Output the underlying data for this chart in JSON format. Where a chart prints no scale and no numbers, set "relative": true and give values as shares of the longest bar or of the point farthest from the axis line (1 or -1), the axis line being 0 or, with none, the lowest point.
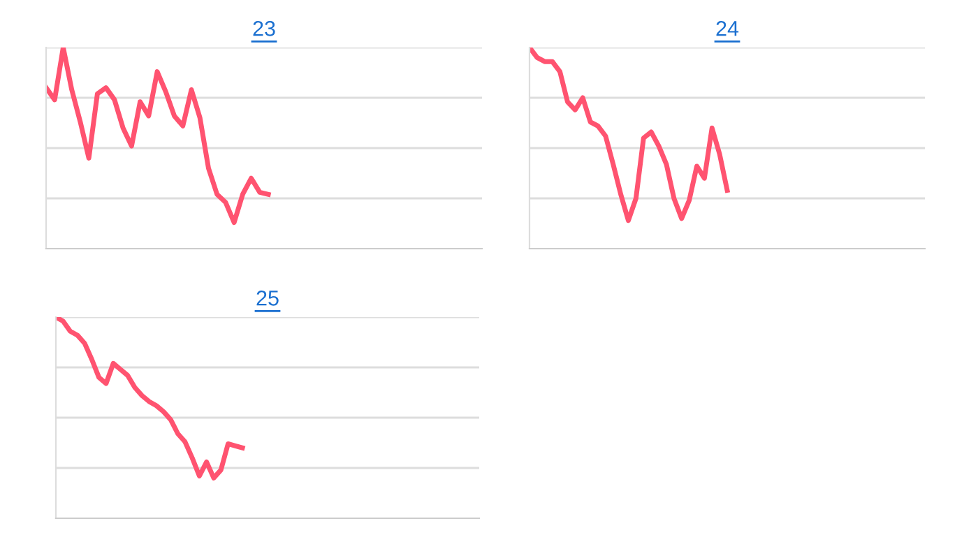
{
  "chart_data": [
    {
      "type": "line",
      "title": "23",
      "relative": true,
      "grid": "y",
      "legend": false,
      "marker": "none",
      "line_style": "solid",
      "categories": [
        null,
        null,
        null,
        null,
        null,
        null,
        null,
        null,
        null,
        null,
        null,
        null,
        null,
        null,
        null,
        null,
        null,
        null,
        null,
        null,
        null,
        null,
        null,
        null,
        null,
        null,
        null,
        null,
        null,
        null,
        null,
        null,
        null,
        null,
        null,
        null,
        null,
        null,
        null,
        null,
        null,
        null,
        null,
        null,
        null,
        null,
        null,
        null,
        null,
        null,
        null,
        null
      ],
      "series": [
        {
          "color": "#ff5370",
          "values": [
            0.8,
            0.74,
            1.0,
            0.79,
            0.63,
            0.45,
            0.77,
            0.8,
            0.74,
            0.6,
            0.51,
            0.73,
            0.66,
            0.88,
            0.78,
            0.66,
            0.61,
            0.79,
            0.65,
            0.4,
            0.27,
            0.23,
            0.13,
            0.27,
            0.35,
            0.28,
            0.27,
            null,
            null,
            null,
            null,
            null,
            null,
            null,
            null,
            null,
            null,
            null,
            null,
            null,
            null,
            null,
            null,
            null,
            null,
            null,
            null,
            null,
            null,
            null,
            null,
            null
          ]
        }
      ]
    },
    {
      "type": "line",
      "title": "24",
      "relative": true,
      "grid": "y",
      "legend": false,
      "marker": "none",
      "line_style": "solid",
      "categories": [
        null,
        null,
        null,
        null,
        null,
        null,
        null,
        null,
        null,
        null,
        null,
        null,
        null,
        null,
        null,
        null,
        null,
        null,
        null,
        null,
        null,
        null,
        null,
        null,
        null,
        null,
        null,
        null,
        null,
        null,
        null,
        null,
        null,
        null,
        null,
        null,
        null,
        null,
        null,
        null,
        null,
        null,
        null,
        null,
        null,
        null,
        null,
        null,
        null,
        null,
        null,
        null,
        null
      ],
      "series": [
        {
          "color": "#ff5370",
          "values": [
            1.0,
            0.95,
            0.93,
            0.93,
            0.88,
            0.73,
            0.69,
            0.75,
            0.63,
            0.61,
            0.56,
            0.42,
            0.27,
            0.14,
            0.25,
            0.55,
            0.58,
            0.51,
            0.42,
            0.25,
            0.15,
            0.24,
            0.41,
            0.35,
            0.6,
            0.47,
            0.29,
            null,
            null,
            null,
            null,
            null,
            null,
            null,
            null,
            null,
            null,
            null,
            null,
            null,
            null,
            null,
            null,
            null,
            null,
            null,
            null,
            null,
            null,
            null,
            null,
            null,
            null
          ]
        }
      ]
    },
    {
      "type": "line",
      "title": "25",
      "relative": true,
      "grid": "y",
      "legend": false,
      "marker": "none",
      "line_style": "solid",
      "categories": [
        null,
        null,
        null,
        null,
        null,
        null,
        null,
        null,
        null,
        null,
        null,
        null,
        null,
        null,
        null,
        null,
        null,
        null,
        null,
        null,
        null,
        null,
        null,
        null,
        null,
        null,
        null,
        null,
        null,
        null,
        null,
        null,
        null,
        null,
        null,
        null,
        null,
        null,
        null,
        null,
        null,
        null,
        null,
        null,
        null,
        null,
        null,
        null,
        null,
        null,
        null,
        null,
        null,
        null,
        null,
        null,
        null,
        null,
        null,
        null
      ],
      "series": [
        {
          "color": "#ff5370",
          "values": [
            1.0,
            0.98,
            0.93,
            0.91,
            0.87,
            0.79,
            0.7,
            0.67,
            0.77,
            0.74,
            0.71,
            0.65,
            0.61,
            0.58,
            0.56,
            0.53,
            0.49,
            0.42,
            0.38,
            0.3,
            0.21,
            0.28,
            0.2,
            0.24,
            0.37,
            0.36,
            0.35,
            null,
            null,
            null,
            null,
            null,
            null,
            null,
            null,
            null,
            null,
            null,
            null,
            null,
            null,
            null,
            null,
            null,
            null,
            null,
            null,
            null,
            null,
            null,
            null,
            null,
            null,
            null,
            null,
            null,
            null,
            null,
            null,
            null
          ]
        }
      ]
    }
  ]
}
